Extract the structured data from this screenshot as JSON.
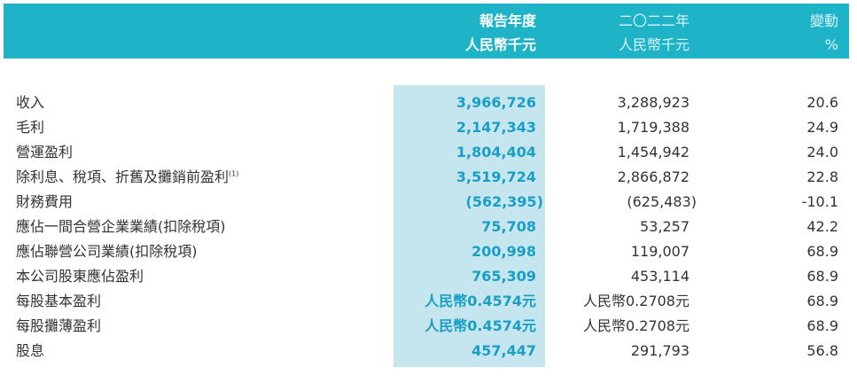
{
  "header": {
    "current_year_label": "報告年度",
    "current_unit": "人民幣千元",
    "prior_year_label": "二〇二二年",
    "prior_unit": "人民幣千元",
    "change_label": "變動",
    "change_unit": "%"
  },
  "rows": [
    {
      "label": "收入",
      "note": "",
      "current": "3,966,726",
      "prior": "3,288,923",
      "change": "20.6"
    },
    {
      "label": "毛利",
      "note": "",
      "current": "2,147,343",
      "prior": "1,719,388",
      "change": "24.9"
    },
    {
      "label": "營運盈利",
      "note": "",
      "current": "1,804,404",
      "prior": "1,454,942",
      "change": "24.0"
    },
    {
      "label": "除利息、稅項、折舊及攤銷前盈利",
      "note": "(1)",
      "current": "3,519,724",
      "prior": "2,866,872",
      "change": "22.8"
    },
    {
      "label": "財務費用",
      "note": "",
      "current": "(562,395)",
      "prior": "(625,483)",
      "change": "-10.1"
    },
    {
      "label": "應佔一間合營企業業績(扣除稅項)",
      "note": "",
      "current": "75,708",
      "prior": "53,257",
      "change": "42.2"
    },
    {
      "label": "應佔聯營公司業績(扣除稅項)",
      "note": "",
      "current": "200,998",
      "prior": "119,007",
      "change": "68.9"
    },
    {
      "label": "本公司股東應佔盈利",
      "note": "",
      "current": "765,309",
      "prior": "453,114",
      "change": "68.9"
    },
    {
      "label": "每股基本盈利",
      "note": "",
      "current": "人民幣0.4574元",
      "prior": "人民幣0.2708元",
      "change": "68.9"
    },
    {
      "label": "每股攤薄盈利",
      "note": "",
      "current": "人民幣0.4574元",
      "prior": "人民幣0.2708元",
      "change": "68.9"
    },
    {
      "label": "股息",
      "note": "",
      "current": "457,447",
      "prior": "291,793",
      "change": "56.8"
    }
  ]
}
